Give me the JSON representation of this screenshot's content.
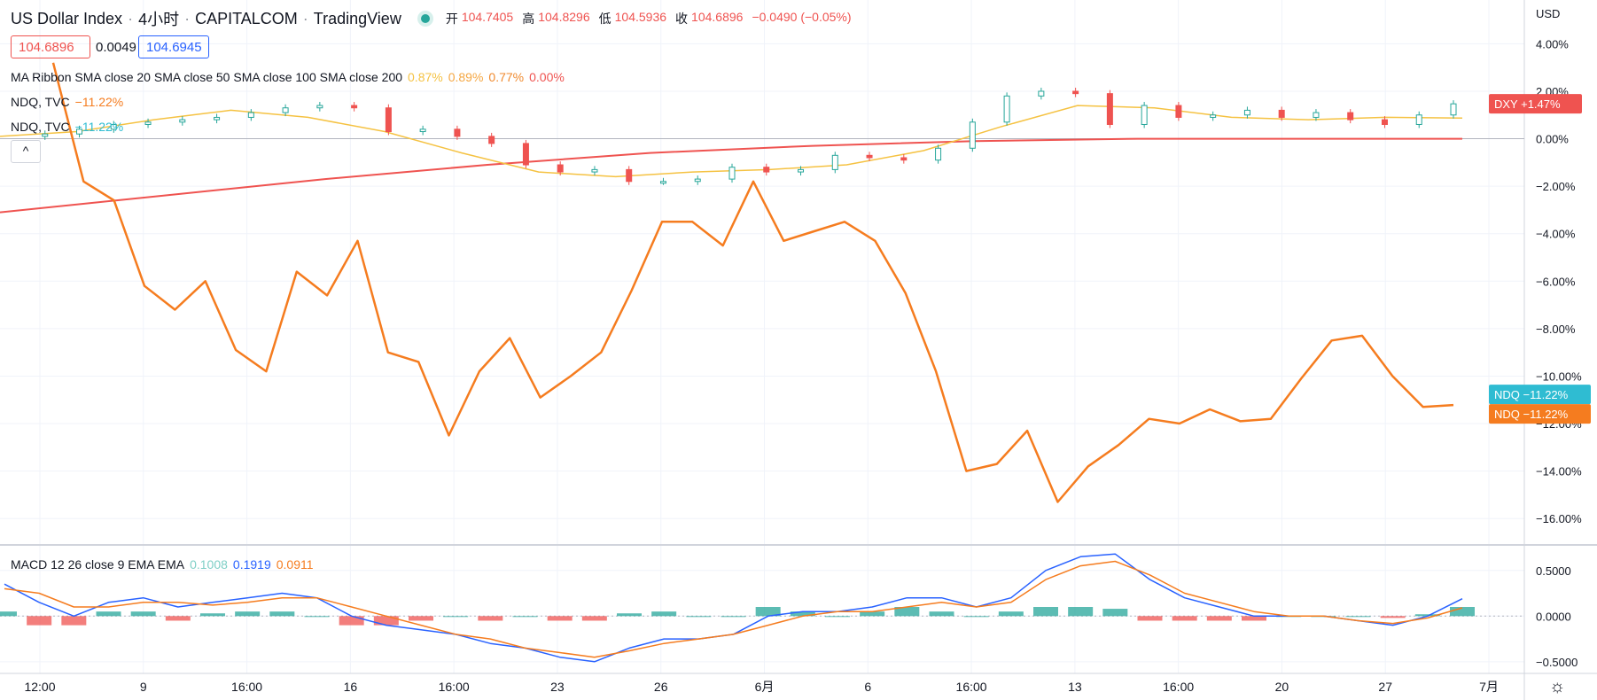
{
  "header": {
    "symbol_title": "US Dollar Index",
    "interval": "4小时",
    "exchange": "CAPITALCOM",
    "brand": "TradingView",
    "ohlc": [
      {
        "k": "开",
        "v": "104.7405"
      },
      {
        "k": "高",
        "v": "104.8296"
      },
      {
        "k": "低",
        "v": "104.5936"
      },
      {
        "k": "收",
        "v": "104.6896"
      },
      {
        "k": "",
        "v": "−0.0490 (−0.05%)"
      }
    ]
  },
  "price_boxes": {
    "bid": "104.6896",
    "spread": "0.0049",
    "ask": "104.6945"
  },
  "legends": {
    "ma": {
      "label": "MA Ribbon SMA close 20 SMA close 50 SMA close 100 SMA close 200",
      "v1": "0.87%",
      "v2": "0.89%",
      "v3": "0.77%",
      "v4": "0.00%"
    },
    "ndq1": {
      "label": "NDQ, TVC",
      "value": "−11.22%"
    },
    "ndq2": {
      "label": "NDQ, TVC",
      "value": "−11.22%"
    },
    "macd": {
      "label": "MACD 12 26 close 9 EMA EMA",
      "hist": "0.1008",
      "macd": "0.1919",
      "signal": "0.0911"
    }
  },
  "collapse_glyph": "^",
  "axis_unit": "USD",
  "gear_glyph": "☼",
  "colors": {
    "up": "#26a69a",
    "down": "#ef5350",
    "ndq": "#f57c1f",
    "sma20": "#f5c242",
    "sma50": "#f5a742",
    "sma100": "#f08a2e",
    "sma200": "#ef5350",
    "macd": "#2962ff",
    "signal": "#f57c1f",
    "ndq_badge": "#2fbcd2"
  },
  "chart_data": {
    "type": "line",
    "x_ticks": [
      "12:00",
      "9",
      "16:00",
      "16",
      "16:00",
      "23",
      "26",
      "6月",
      "6",
      "16:00",
      "13",
      "16:00",
      "20",
      "27",
      "7月"
    ],
    "y_axis": {
      "unit": "%",
      "ticks": [
        "4.00%",
        "2.00%",
        "0.00%",
        "−2.00%",
        "−4.00%",
        "−6.00%",
        "−8.00%",
        "−10.00%",
        "−12.00%",
        "−14.00%",
        "−16.00%"
      ],
      "ylim": [
        -17,
        4.5
      ]
    },
    "series": [
      {
        "name": "NDQ",
        "values": [
          3.2,
          -1.8,
          -2.6,
          -6.2,
          -7.2,
          -6.0,
          -8.9,
          -9.8,
          -5.6,
          -6.6,
          -4.3,
          -9.0,
          -9.4,
          -12.5,
          -9.8,
          -8.4,
          -10.9,
          -10.0,
          -9.0,
          -6.4,
          -3.5,
          -3.5,
          -4.5,
          -1.8,
          -4.3,
          -3.9,
          -3.5,
          -4.3,
          -6.5,
          -9.8,
          -14.0,
          -13.7,
          -12.3,
          -15.3,
          -13.8,
          -12.9,
          -11.8,
          -12.0,
          -11.4,
          -11.9,
          -11.8,
          -10.1,
          -8.5,
          -8.3,
          -10.0,
          -11.3,
          -11.22
        ]
      },
      {
        "name": "DXY",
        "values": [
          0.1,
          0.2,
          0.4,
          0.6,
          0.7,
          0.8,
          0.9,
          1.1,
          1.3,
          1.4,
          1.3,
          0.3,
          0.4,
          0.1,
          -0.2,
          -1.1,
          -1.4,
          -1.3,
          -1.8,
          -1.8,
          -1.7,
          -1.2,
          -1.4,
          -1.3,
          -0.7,
          -0.8,
          -0.9,
          -0.4,
          0.7,
          1.8,
          2.0,
          1.9,
          0.6,
          1.4,
          0.9,
          1.0,
          1.2,
          0.9,
          1.1,
          0.8,
          0.6,
          1.0,
          1.47
        ]
      },
      {
        "name": "SMA 20",
        "values": [
          0.1,
          0.3,
          0.8,
          1.2,
          0.9,
          0.3,
          -0.6,
          -1.4,
          -1.6,
          -1.4,
          -1.3,
          -1.1,
          -0.5,
          0.5,
          1.4,
          1.3,
          0.9,
          0.8,
          0.9,
          0.87
        ]
      },
      {
        "name": "SMA 200",
        "values": [
          -3.1,
          -2.4,
          -1.7,
          -1.1,
          -0.6,
          -0.3,
          -0.1,
          0.0,
          0.0,
          0.0
        ]
      }
    ],
    "macd": {
      "ylim": [
        -0.55,
        0.75
      ],
      "ticks": [
        "0.5000",
        "0.0000",
        "−0.5000"
      ],
      "macd": [
        0.35,
        0.15,
        0.0,
        0.15,
        0.2,
        0.1,
        0.15,
        0.2,
        0.25,
        0.2,
        0.0,
        -0.1,
        -0.15,
        -0.2,
        -0.3,
        -0.35,
        -0.45,
        -0.5,
        -0.35,
        -0.25,
        -0.25,
        -0.2,
        0.0,
        0.05,
        0.05,
        0.1,
        0.2,
        0.2,
        0.1,
        0.2,
        0.5,
        0.65,
        0.68,
        0.4,
        0.2,
        0.1,
        0.0,
        0.0,
        0.0,
        -0.05,
        -0.1,
        0.0,
        0.19
      ],
      "signal": [
        0.3,
        0.25,
        0.1,
        0.1,
        0.15,
        0.15,
        0.12,
        0.15,
        0.2,
        0.2,
        0.1,
        0.0,
        -0.1,
        -0.2,
        -0.25,
        -0.35,
        -0.4,
        -0.45,
        -0.38,
        -0.3,
        -0.25,
        -0.2,
        -0.1,
        0.0,
        0.05,
        0.05,
        0.1,
        0.15,
        0.1,
        0.15,
        0.4,
        0.55,
        0.6,
        0.45,
        0.25,
        0.15,
        0.05,
        0.0,
        0.0,
        -0.05,
        -0.08,
        -0.02,
        0.09
      ]
    },
    "grid": true,
    "legend": "top-left"
  }
}
